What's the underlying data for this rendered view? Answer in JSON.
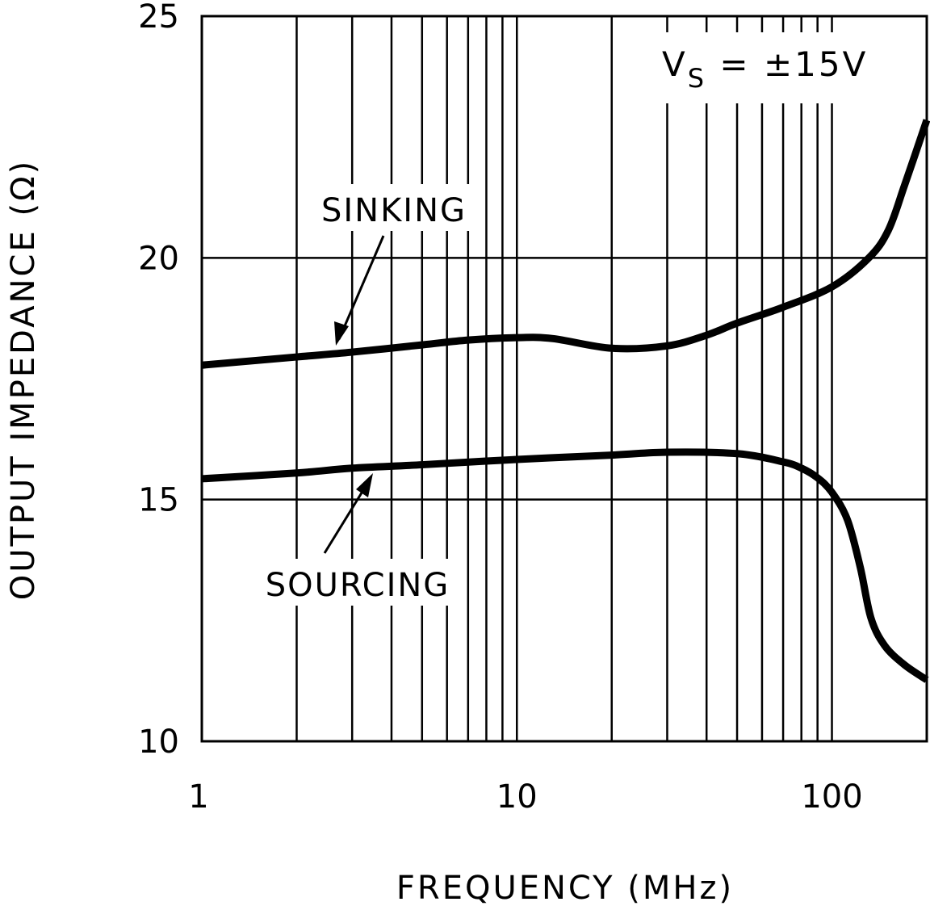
{
  "chart_data": {
    "type": "line",
    "title": "",
    "xlabel": "FREQUENCY (MHz)",
    "ylabel": "OUTPUT IMPEDANCE (Ω)",
    "xscale": "log",
    "xlim": [
      1,
      200
    ],
    "ylim": [
      10,
      25
    ],
    "xticks": [
      1,
      10,
      100
    ],
    "xtick_labels": [
      "1",
      "10",
      "100"
    ],
    "yticks": [
      10,
      15,
      20,
      25
    ],
    "ytick_labels": [
      "10",
      "15",
      "20",
      "25"
    ],
    "grid": true,
    "annotation": {
      "main": "V",
      "sub": "S",
      "rest": " = ±15V"
    },
    "series": [
      {
        "name": "SINKING",
        "x": [
          1,
          2,
          3,
          5,
          7,
          10,
          13,
          20,
          30,
          40,
          50,
          70,
          100,
          131,
          151,
          170,
          200
        ],
        "y": [
          17.78,
          17.95,
          18.05,
          18.2,
          18.3,
          18.35,
          18.33,
          18.13,
          18.18,
          18.4,
          18.65,
          18.98,
          19.4,
          20.0,
          20.57,
          21.5,
          22.85
        ]
      },
      {
        "name": "SOURCING",
        "x": [
          1,
          2,
          3,
          5,
          10,
          20,
          30,
          50,
          70,
          80,
          90,
          100,
          112,
          123,
          133,
          147,
          170,
          200
        ],
        "y": [
          15.43,
          15.55,
          15.65,
          15.72,
          15.83,
          15.92,
          15.98,
          15.95,
          15.78,
          15.65,
          15.45,
          15.15,
          14.58,
          13.6,
          12.55,
          11.98,
          11.58,
          11.27
        ]
      }
    ],
    "colors": {
      "line": "#000000",
      "background": "#ffffff"
    }
  }
}
